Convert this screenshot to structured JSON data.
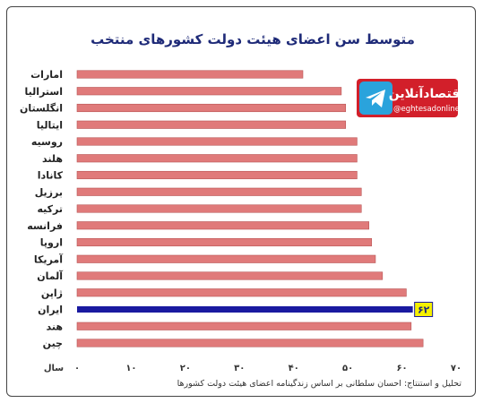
{
  "chart_data": {
    "type": "bar",
    "orientation": "horizontal",
    "title": "متوسط سن اعضای هیئت دولت کشورهای منتخب",
    "categories": [
      "امارات",
      "استرالیا",
      "انگلستان",
      "ایتالیا",
      "روسیه",
      "هلند",
      "کانادا",
      "برزیل",
      "ترکیه",
      "فرانسه",
      "اروپا",
      "آمریکا",
      "آلمان",
      "ژاپن",
      "ایران",
      "هند",
      "چین"
    ],
    "values": [
      41.7,
      48.8,
      49.6,
      49.6,
      51.7,
      51.7,
      51.7,
      52.5,
      52.5,
      53.9,
      54.4,
      55.1,
      56.4,
      60.8,
      62,
      61.7,
      63.9
    ],
    "highlight_index": 14,
    "highlight_label": "۶۲",
    "xlim": [
      0,
      70
    ],
    "xticks": [
      0,
      10,
      20,
      30,
      40,
      50,
      60,
      70
    ],
    "xtick_labels": [
      "۰",
      "۱۰",
      "۲۰",
      "۳۰",
      "۴۰",
      "۵۰",
      "۶۰",
      "۷۰"
    ],
    "xlabel": "سال",
    "grid": false,
    "source": "تحلیل و استنتاج: احسان سلطانی بر اساس زندگینامه اعضای هیئت دولت کشورها",
    "colors": {
      "bar": "#e07a7a",
      "bar_stroke": "#b85555",
      "highlight_bar": "#1a1aa0",
      "highlight_label_bg": "#f5f000",
      "title": "#1e2a78"
    }
  },
  "watermark": {
    "brand": "اقتصادآنلاین",
    "handle": "@eghtesadonline",
    "icon": "telegram-icon",
    "colors": {
      "bg": "#d21f2a",
      "icon_bg": "#2aa3dc"
    }
  }
}
